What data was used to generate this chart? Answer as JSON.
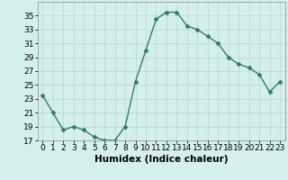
{
  "x": [
    0,
    1,
    2,
    3,
    4,
    5,
    6,
    7,
    8,
    9,
    10,
    11,
    12,
    13,
    14,
    15,
    16,
    17,
    18,
    19,
    20,
    21,
    22,
    23
  ],
  "y": [
    23.5,
    21.0,
    18.5,
    19.0,
    18.5,
    17.5,
    17.0,
    17.0,
    19.0,
    25.5,
    30.0,
    34.5,
    35.5,
    35.5,
    33.5,
    33.0,
    32.0,
    31.0,
    29.0,
    28.0,
    27.5,
    26.5,
    24.0,
    25.5
  ],
  "line_color": "#2e7d6e",
  "marker": "D",
  "markersize": 2.5,
  "linewidth": 1.0,
  "bg_color": "#d5eeee",
  "grid_color": "#b8d8d8",
  "xlabel": "Humidex (Indice chaleur)",
  "ylim": [
    17,
    37
  ],
  "xlim": [
    -0.5,
    23.5
  ],
  "yticks": [
    17,
    19,
    21,
    23,
    25,
    27,
    29,
    31,
    33,
    35
  ],
  "xticks": [
    0,
    1,
    2,
    3,
    4,
    5,
    6,
    7,
    8,
    9,
    10,
    11,
    12,
    13,
    14,
    15,
    16,
    17,
    18,
    19,
    20,
    21,
    22,
    23
  ],
  "xlabel_fontsize": 7.5,
  "tick_fontsize": 6.5
}
